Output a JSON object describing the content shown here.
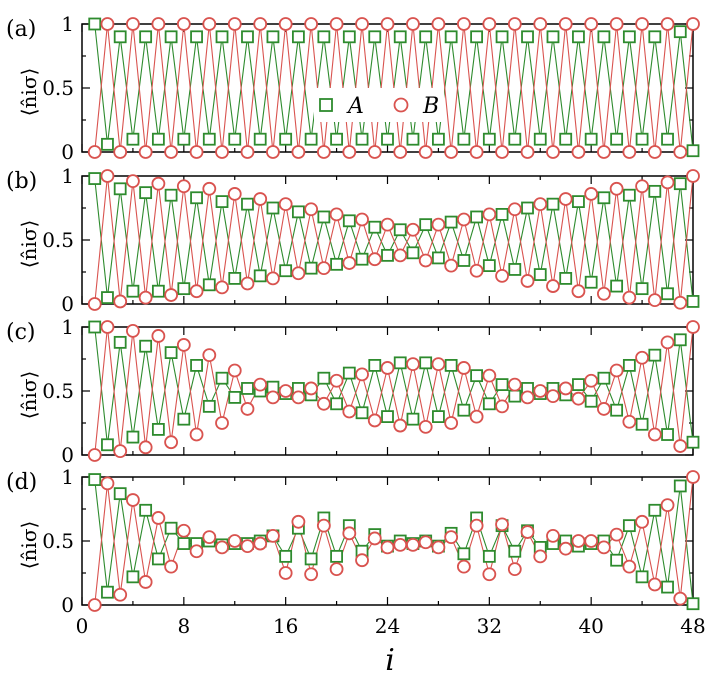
{
  "chart_data": {
    "type": "line",
    "xlabel": "i",
    "ylabel": "⟨n̂iσ⟩",
    "xlim": [
      0,
      48
    ],
    "ylim": [
      0,
      1
    ],
    "x_ticks": [
      "0",
      "8",
      "16",
      "24",
      "32",
      "40",
      "48"
    ],
    "y_ticks": [
      "0",
      "0.5",
      "1"
    ],
    "legend": {
      "placement": "top-center, inside panel (a)",
      "entries": [
        "A",
        "B"
      ]
    },
    "series_style": {
      "A": {
        "marker": "square",
        "color": "#2e8b2e"
      },
      "B": {
        "marker": "circle",
        "color": "#d9534f"
      }
    },
    "panels": [
      {
        "label": "(a)",
        "series": [
          {
            "name": "A",
            "values": [
              1,
              0.06,
              0.9,
              0.1,
              0.9,
              0.1,
              0.9,
              0.1,
              0.9,
              0.1,
              0.9,
              0.1,
              0.9,
              0.1,
              0.9,
              0.1,
              0.9,
              0.1,
              0.9,
              0.1,
              0.9,
              0.1,
              0.9,
              0.1,
              0.9,
              0.1,
              0.9,
              0.1,
              0.9,
              0.1,
              0.9,
              0.1,
              0.9,
              0.1,
              0.9,
              0.1,
              0.9,
              0.1,
              0.9,
              0.1,
              0.9,
              0.1,
              0.9,
              0.1,
              0.9,
              0.1,
              0.94,
              0.01
            ]
          },
          {
            "name": "B",
            "values": [
              0,
              1,
              0,
              1,
              0,
              1,
              0,
              1,
              0,
              1,
              0,
              1,
              0,
              1,
              0,
              1,
              0,
              1,
              0,
              1,
              0,
              1,
              0,
              1,
              0,
              1,
              0,
              1,
              0,
              1,
              0,
              1,
              0,
              1,
              0,
              1,
              0,
              1,
              0,
              1,
              0,
              1,
              0,
              1,
              0,
              1,
              0,
              1
            ]
          }
        ]
      },
      {
        "label": "(b)",
        "series": [
          {
            "name": "A",
            "values": [
              0.98,
              0.05,
              0.9,
              0.1,
              0.87,
              0.1,
              0.85,
              0.12,
              0.83,
              0.15,
              0.8,
              0.2,
              0.78,
              0.22,
              0.75,
              0.26,
              0.72,
              0.28,
              0.68,
              0.31,
              0.65,
              0.35,
              0.6,
              0.38,
              0.58,
              0.4,
              0.62,
              0.36,
              0.64,
              0.34,
              0.68,
              0.3,
              0.7,
              0.27,
              0.75,
              0.23,
              0.78,
              0.2,
              0.8,
              0.17,
              0.83,
              0.14,
              0.85,
              0.12,
              0.88,
              0.08,
              0.94,
              0.02
            ]
          },
          {
            "name": "B",
            "values": [
              0,
              1,
              0.02,
              0.96,
              0.05,
              0.94,
              0.07,
              0.92,
              0.1,
              0.9,
              0.13,
              0.86,
              0.16,
              0.82,
              0.2,
              0.78,
              0.24,
              0.74,
              0.28,
              0.7,
              0.32,
              0.66,
              0.35,
              0.62,
              0.38,
              0.58,
              0.34,
              0.62,
              0.3,
              0.66,
              0.26,
              0.7,
              0.22,
              0.74,
              0.18,
              0.78,
              0.14,
              0.82,
              0.1,
              0.86,
              0.08,
              0.9,
              0.05,
              0.92,
              0.03,
              0.95,
              0.01,
              1
            ]
          }
        ]
      },
      {
        "label": "(c)",
        "series": [
          {
            "name": "A",
            "values": [
              1,
              0.08,
              0.88,
              0.14,
              0.85,
              0.2,
              0.8,
              0.28,
              0.7,
              0.38,
              0.6,
              0.45,
              0.52,
              0.5,
              0.53,
              0.48,
              0.52,
              0.47,
              0.6,
              0.4,
              0.64,
              0.33,
              0.7,
              0.3,
              0.72,
              0.28,
              0.72,
              0.3,
              0.7,
              0.35,
              0.62,
              0.4,
              0.55,
              0.46,
              0.52,
              0.48,
              0.52,
              0.47,
              0.55,
              0.42,
              0.6,
              0.35,
              0.7,
              0.24,
              0.78,
              0.16,
              0.9,
              0.1
            ]
          },
          {
            "name": "B",
            "values": [
              0,
              1,
              0.03,
              0.97,
              0.06,
              0.93,
              0.1,
              0.86,
              0.16,
              0.78,
              0.25,
              0.66,
              0.36,
              0.55,
              0.45,
              0.5,
              0.45,
              0.52,
              0.4,
              0.58,
              0.34,
              0.63,
              0.27,
              0.68,
              0.23,
              0.71,
              0.22,
              0.71,
              0.25,
              0.68,
              0.3,
              0.62,
              0.38,
              0.55,
              0.45,
              0.5,
              0.46,
              0.52,
              0.44,
              0.58,
              0.36,
              0.66,
              0.26,
              0.76,
              0.16,
              0.88,
              0.07,
              1
            ]
          }
        ]
      },
      {
        "label": "(d)",
        "series": [
          {
            "name": "A",
            "values": [
              0.98,
              0.1,
              0.87,
              0.22,
              0.74,
              0.36,
              0.6,
              0.48,
              0.48,
              0.5,
              0.47,
              0.48,
              0.48,
              0.5,
              0.54,
              0.38,
              0.6,
              0.36,
              0.68,
              0.38,
              0.62,
              0.42,
              0.55,
              0.46,
              0.5,
              0.48,
              0.5,
              0.46,
              0.56,
              0.4,
              0.68,
              0.38,
              0.62,
              0.42,
              0.58,
              0.45,
              0.48,
              0.5,
              0.46,
              0.48,
              0.5,
              0.35,
              0.62,
              0.22,
              0.74,
              0.14,
              0.93,
              0.01
            ]
          },
          {
            "name": "B",
            "values": [
              0,
              0.95,
              0.08,
              0.82,
              0.18,
              0.68,
              0.3,
              0.58,
              0.42,
              0.53,
              0.45,
              0.5,
              0.46,
              0.48,
              0.54,
              0.25,
              0.65,
              0.24,
              0.62,
              0.28,
              0.56,
              0.35,
              0.52,
              0.45,
              0.47,
              0.47,
              0.49,
              0.45,
              0.53,
              0.3,
              0.62,
              0.24,
              0.63,
              0.28,
              0.57,
              0.38,
              0.54,
              0.44,
              0.5,
              0.5,
              0.45,
              0.55,
              0.3,
              0.65,
              0.16,
              0.78,
              0.05,
              1
            ]
          }
        ]
      }
    ]
  }
}
